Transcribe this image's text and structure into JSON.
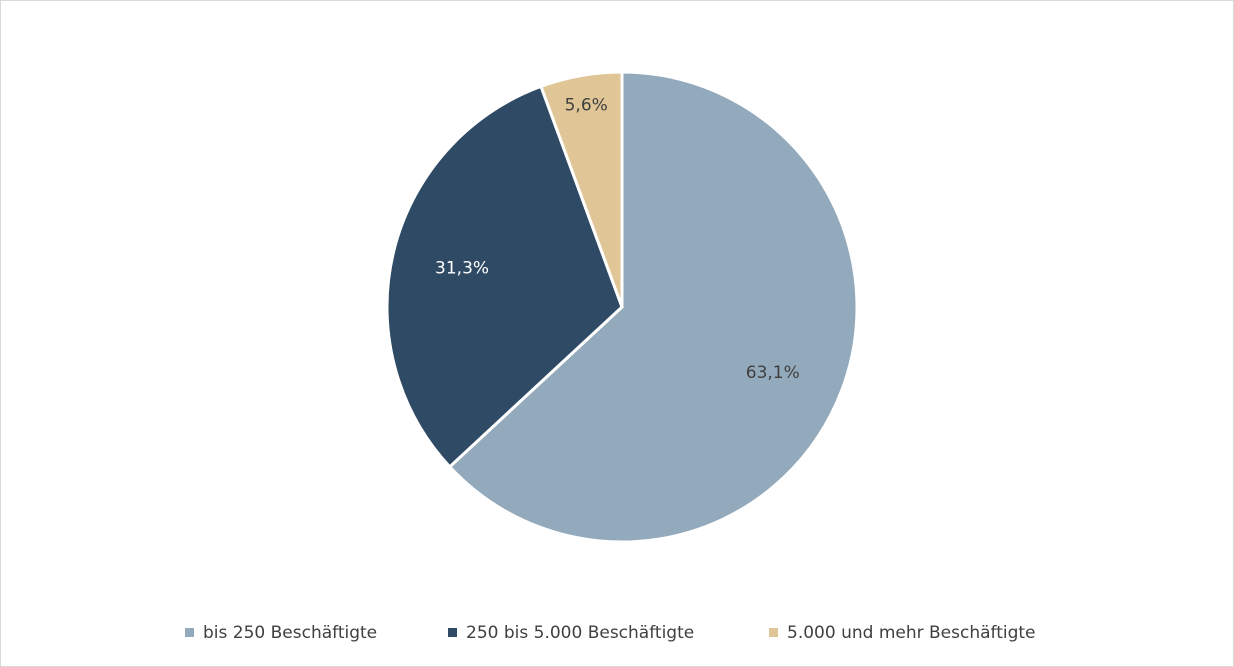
{
  "chart_data": {
    "type": "pie",
    "categories": [
      "bis 250 Beschäftigte",
      "250 bis 5.000 Beschäftigte",
      "5.000 und mehr Beschäftigte"
    ],
    "values": [
      63.1,
      31.3,
      5.6
    ],
    "value_labels": [
      "63,1%",
      "31,3%",
      "5,6%"
    ],
    "colors": [
      "#93a9bc",
      "#2e4a65",
      "#e0c596"
    ],
    "legend": "bottom"
  }
}
